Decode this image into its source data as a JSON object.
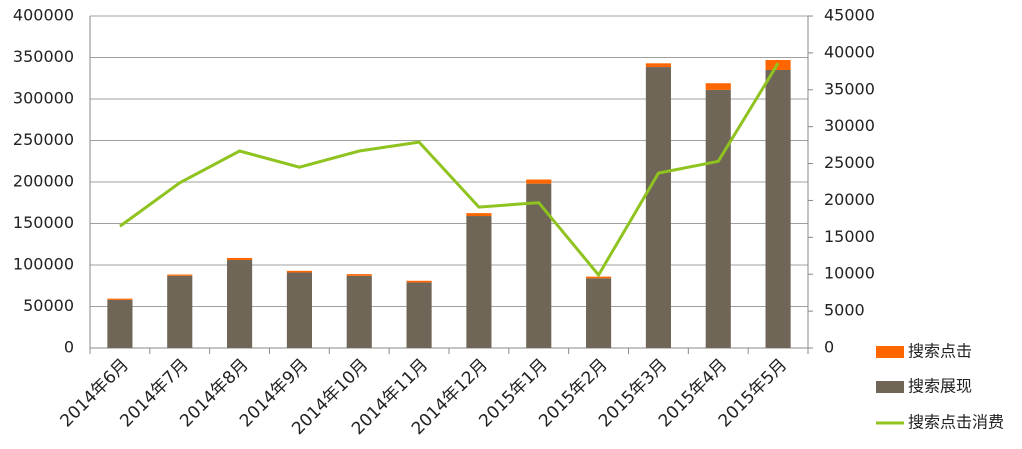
{
  "chart_data": {
    "type": "bar",
    "categories": [
      "2014年6月",
      "2014年7月",
      "2014年8月",
      "2014年9月",
      "2014年10月",
      "2014年11月",
      "2014年12月",
      "2015年1月",
      "2015年2月",
      "2015年3月",
      "2015年4月",
      "2015年5月"
    ],
    "series": [
      {
        "name": "搜索点击",
        "color": "#ff6600",
        "stack": true,
        "values": [
          1500,
          1500,
          2500,
          2000,
          2000,
          2000,
          3500,
          5000,
          2000,
          4500,
          8000,
          12000
        ]
      },
      {
        "name": "搜索展现",
        "color": "#6f6657",
        "stack": true,
        "values": [
          58000,
          87000,
          106000,
          91000,
          87000,
          79000,
          159000,
          198000,
          84000,
          338500,
          311000,
          335000
        ]
      },
      {
        "name": "搜索点击消费",
        "color": "#8fc31f",
        "type": "line",
        "axis": "y2",
        "values": [
          16500,
          22400,
          26700,
          24500,
          26700,
          27900,
          19100,
          19700,
          9900,
          23700,
          25300,
          38600
        ]
      }
    ],
    "ylim": [
      0,
      400000
    ],
    "yticks": [
      0,
      50000,
      100000,
      150000,
      200000,
      250000,
      300000,
      350000,
      400000
    ],
    "y2lim": [
      0,
      45000
    ],
    "y2ticks": [
      0,
      5000,
      10000,
      15000,
      20000,
      25000,
      30000,
      35000,
      40000,
      45000
    ],
    "grid": true,
    "legend": "right"
  }
}
